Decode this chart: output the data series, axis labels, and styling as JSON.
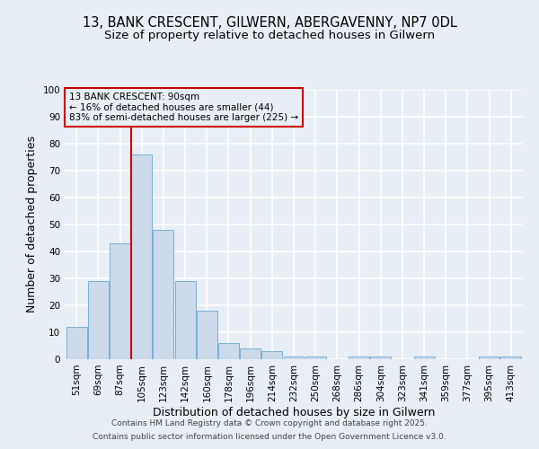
{
  "title1": "13, BANK CRESCENT, GILWERN, ABERGAVENNY, NP7 0DL",
  "title2": "Size of property relative to detached houses in Gilwern",
  "xlabel": "Distribution of detached houses by size in Gilwern",
  "ylabel": "Number of detached properties",
  "categories": [
    "51sqm",
    "69sqm",
    "87sqm",
    "105sqm",
    "123sqm",
    "142sqm",
    "160sqm",
    "178sqm",
    "196sqm",
    "214sqm",
    "232sqm",
    "250sqm",
    "268sqm",
    "286sqm",
    "304sqm",
    "323sqm",
    "341sqm",
    "359sqm",
    "377sqm",
    "395sqm",
    "413sqm"
  ],
  "values": [
    12,
    29,
    43,
    76,
    48,
    29,
    18,
    6,
    4,
    3,
    1,
    1,
    0,
    1,
    1,
    0,
    1,
    0,
    0,
    1,
    1
  ],
  "bar_color": "#ccdaeb",
  "bar_edge_color": "#7aafd4",
  "vline_color": "#cc0000",
  "annotation_box_color": "#cc0000",
  "annotation_lines": [
    "13 BANK CRESCENT: 90sqm",
    "← 16% of detached houses are smaller (44)",
    "83% of semi-detached houses are larger (225) →"
  ],
  "ylim": [
    0,
    100
  ],
  "yticks": [
    0,
    10,
    20,
    30,
    40,
    50,
    60,
    70,
    80,
    90,
    100
  ],
  "footer1": "Contains HM Land Registry data © Crown copyright and database right 2025.",
  "footer2": "Contains public sector information licensed under the Open Government Licence v3.0.",
  "background_color": "#e8eef5",
  "grid_color": "#ffffff",
  "title_fontsize": 10.5,
  "subtitle_fontsize": 9.5,
  "axis_label_fontsize": 9,
  "tick_fontsize": 7.5,
  "annotation_fontsize": 7.5,
  "footer_fontsize": 6.5
}
